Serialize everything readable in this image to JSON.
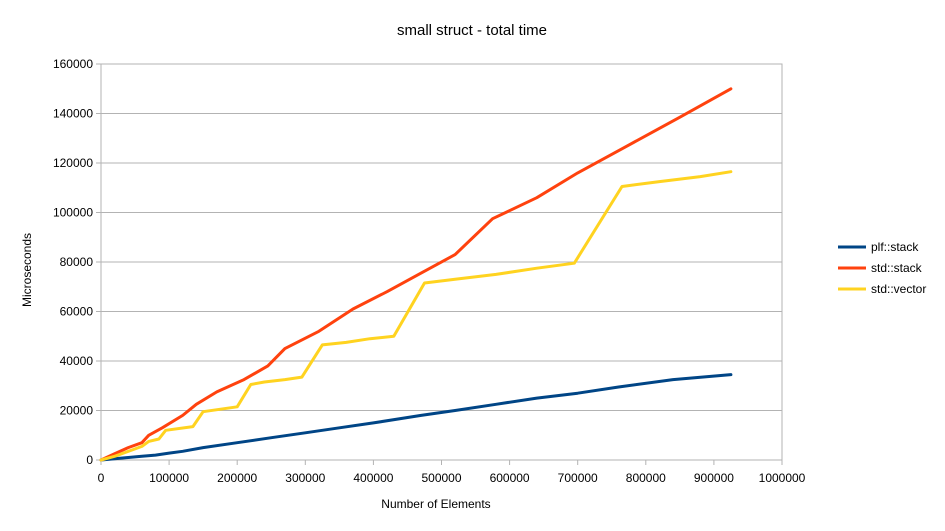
{
  "chart_data": {
    "type": "line",
    "title": "small struct - total time",
    "xlabel": "Number of Elements",
    "ylabel": "Microseconds",
    "xlim": [
      0,
      1000000
    ],
    "ylim": [
      0,
      160000
    ],
    "x_ticks": [
      0,
      100000,
      200000,
      300000,
      400000,
      500000,
      600000,
      700000,
      800000,
      900000,
      1000000
    ],
    "y_ticks": [
      0,
      20000,
      40000,
      60000,
      80000,
      100000,
      120000,
      140000,
      160000
    ],
    "x_tick_labels": [
      "0",
      "100000",
      "200000",
      "300000",
      "400000",
      "500000",
      "600000",
      "700000",
      "800000",
      "900000",
      "1000000"
    ],
    "y_tick_labels": [
      "0",
      "20000",
      "40000",
      "60000",
      "80000",
      "100000",
      "120000",
      "140000",
      "160000"
    ],
    "grid": "horizontal",
    "legend_position": "right",
    "series": [
      {
        "name": "plf::stack",
        "color": "#004586",
        "points": [
          [
            0,
            0
          ],
          [
            20000,
            500
          ],
          [
            40000,
            1000
          ],
          [
            60000,
            1500
          ],
          [
            80000,
            2000
          ],
          [
            100000,
            2800
          ],
          [
            120000,
            3500
          ],
          [
            150000,
            5000
          ],
          [
            200000,
            7000
          ],
          [
            250000,
            9000
          ],
          [
            300000,
            11000
          ],
          [
            350000,
            13000
          ],
          [
            400000,
            15000
          ],
          [
            470000,
            18000
          ],
          [
            520000,
            20000
          ],
          [
            580000,
            22500
          ],
          [
            640000,
            25000
          ],
          [
            700000,
            27000
          ],
          [
            760000,
            29500
          ],
          [
            840000,
            32500
          ],
          [
            925000,
            34500
          ]
        ]
      },
      {
        "name": "std::stack",
        "color": "#ff420e",
        "points": [
          [
            0,
            0
          ],
          [
            20000,
            2500
          ],
          [
            40000,
            5000
          ],
          [
            60000,
            7000
          ],
          [
            70000,
            10000
          ],
          [
            90000,
            13000
          ],
          [
            120000,
            18000
          ],
          [
            140000,
            22500
          ],
          [
            170000,
            27500
          ],
          [
            210000,
            32500
          ],
          [
            245000,
            38000
          ],
          [
            270000,
            45000
          ],
          [
            320000,
            52000
          ],
          [
            370000,
            61000
          ],
          [
            420000,
            68000
          ],
          [
            470000,
            75500
          ],
          [
            520000,
            83000
          ],
          [
            575000,
            97500
          ],
          [
            640000,
            106000
          ],
          [
            700000,
            116000
          ],
          [
            770000,
            126500
          ],
          [
            850000,
            138500
          ],
          [
            925000,
            150000
          ]
        ]
      },
      {
        "name": "std::vector",
        "color": "#ffd320",
        "points": [
          [
            0,
            0
          ],
          [
            20000,
            1500
          ],
          [
            35000,
            3000
          ],
          [
            50000,
            4500
          ],
          [
            60000,
            5500
          ],
          [
            70000,
            7500
          ],
          [
            85000,
            8500
          ],
          [
            95000,
            12000
          ],
          [
            135000,
            13500
          ],
          [
            150000,
            19500
          ],
          [
            200000,
            21500
          ],
          [
            220000,
            30500
          ],
          [
            240000,
            31500
          ],
          [
            270000,
            32500
          ],
          [
            295000,
            33500
          ],
          [
            325000,
            46500
          ],
          [
            360000,
            47500
          ],
          [
            395000,
            49000
          ],
          [
            430000,
            50000
          ],
          [
            475000,
            71500
          ],
          [
            520000,
            73000
          ],
          [
            580000,
            75000
          ],
          [
            640000,
            77500
          ],
          [
            695000,
            79500
          ],
          [
            765000,
            110500
          ],
          [
            820000,
            112500
          ],
          [
            880000,
            114500
          ],
          [
            925000,
            116500
          ]
        ]
      }
    ]
  }
}
